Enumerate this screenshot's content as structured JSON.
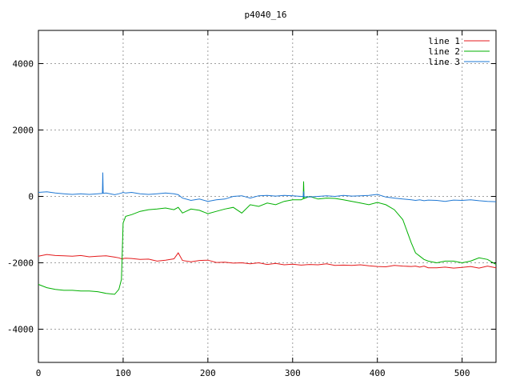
{
  "chart_data": {
    "type": "line",
    "title": "p4040_16",
    "xlabel": "",
    "ylabel": "",
    "xlim": [
      0,
      540
    ],
    "ylim": [
      -5000,
      5000
    ],
    "xticks": [
      0,
      100,
      200,
      300,
      400,
      500
    ],
    "yticks": [
      -4000,
      -2000,
      0,
      2000,
      4000
    ],
    "grid": true,
    "legend_position": "top-right",
    "x": [
      0,
      10,
      20,
      30,
      40,
      50,
      60,
      70,
      80,
      90,
      95,
      98,
      100,
      103,
      110,
      120,
      130,
      140,
      150,
      160,
      165,
      170,
      180,
      190,
      200,
      210,
      220,
      230,
      240,
      250,
      260,
      270,
      280,
      290,
      300,
      310,
      320,
      330,
      340,
      350,
      360,
      370,
      380,
      390,
      400,
      410,
      420,
      430,
      440,
      445,
      450,
      455,
      460,
      470,
      480,
      490,
      500,
      510,
      520,
      530,
      540
    ],
    "series": [
      {
        "name": "line 1",
        "color": "#e41a1c",
        "values": [
          -1800,
          -1750,
          -1780,
          -1790,
          -1800,
          -1780,
          -1820,
          -1800,
          -1790,
          -1830,
          -1850,
          -1880,
          -1870,
          -1860,
          -1870,
          -1900,
          -1890,
          -1950,
          -1920,
          -1880,
          -1700,
          -1930,
          -1970,
          -1930,
          -1920,
          -1990,
          -1980,
          -2010,
          -2000,
          -2030,
          -2000,
          -2050,
          -2020,
          -2060,
          -2040,
          -2070,
          -2050,
          -2060,
          -2030,
          -2080,
          -2070,
          -2080,
          -2060,
          -2090,
          -2110,
          -2120,
          -2080,
          -2100,
          -2110,
          -2100,
          -2130,
          -2100,
          -2150,
          -2150,
          -2130,
          -2160,
          -2140,
          -2110,
          -2160,
          -2100,
          -2150
        ]
      },
      {
        "name": "line 2",
        "color": "#00b000",
        "values": [
          -2650,
          -2750,
          -2800,
          -2830,
          -2830,
          -2850,
          -2850,
          -2870,
          -2920,
          -2950,
          -2800,
          -2500,
          -800,
          -600,
          -550,
          -450,
          -400,
          -380,
          -350,
          -400,
          -330,
          -500,
          -380,
          -420,
          -520,
          -450,
          -380,
          -330,
          -500,
          -250,
          -300,
          -200,
          -250,
          -150,
          -100,
          -100,
          0,
          -80,
          -50,
          -60,
          -100,
          -150,
          -200,
          -250,
          -180,
          -250,
          -400,
          -700,
          -1400,
          -1700,
          -1800,
          -1900,
          -1950,
          -2000,
          -1950,
          -1950,
          -2000,
          -1950,
          -1850,
          -1900,
          -2050
        ]
      },
      {
        "name": "line 3",
        "color": "#1f78d4",
        "values": [
          120,
          140,
          100,
          80,
          60,
          80,
          60,
          80,
          100,
          50,
          80,
          100,
          120,
          100,
          120,
          80,
          60,
          80,
          100,
          80,
          50,
          -50,
          -120,
          -80,
          -150,
          -100,
          -80,
          0,
          20,
          -50,
          20,
          30,
          10,
          30,
          20,
          0,
          -20,
          0,
          20,
          0,
          30,
          10,
          20,
          30,
          60,
          -20,
          -50,
          -80,
          -100,
          -120,
          -100,
          -130,
          -110,
          -120,
          -150,
          -110,
          -120,
          -100,
          -130,
          -150,
          -160
        ]
      }
    ],
    "annotations": [
      {
        "series": "line 3",
        "x": 76,
        "y": 720
      },
      {
        "series": "line 2",
        "x": 313,
        "y": 450
      },
      {
        "series": "line 3",
        "x": 313,
        "y": 150
      }
    ]
  }
}
